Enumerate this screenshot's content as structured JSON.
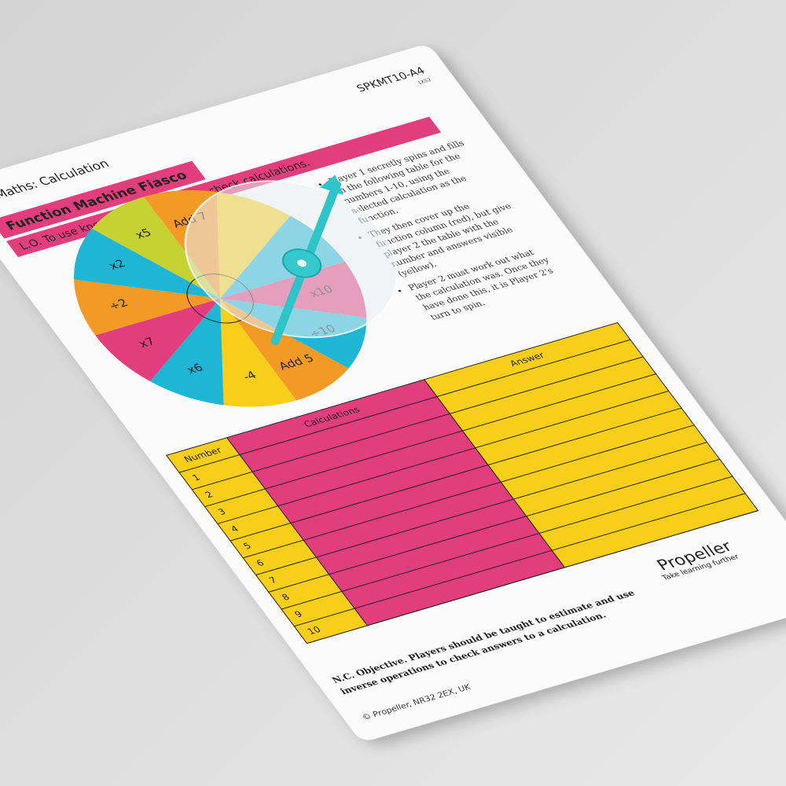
{
  "code": "SPKMT10-A4",
  "stage": "LKS2",
  "subject": "Maths: Calculation",
  "title": "Function Machine Fiasco",
  "objective": "L.O. To use knowledge of inverse to check calculations.",
  "wheel": {
    "labels": [
      "x5",
      "Add 7",
      "x10",
      "÷10",
      "Add 5",
      "-4",
      "x6",
      "x7",
      "÷2",
      "x2"
    ]
  },
  "instructions": [
    "Player 1 secretly spins and fills in the following table for the numbers 1-10, using the selected calculation as the function.",
    "They then cover up the function column (red), but give player 2 the table with the number and answers visible (yellow).",
    "Player 2 must work out what the calculation was. Once they have done this, it is Player 2's turn to spin."
  ],
  "table": {
    "headers": [
      "Number",
      "Calculations",
      "Answer"
    ],
    "rows": [
      "1",
      "2",
      "3",
      "4",
      "5",
      "6",
      "7",
      "8",
      "9",
      "10"
    ]
  },
  "nc_objective": "N.C. Objective. Players should be taught to estimate and use inverse operations to check answers to a calculation.",
  "footer": "© Propeller, NR32 2EX, UK",
  "logo": {
    "name": "Propeller",
    "tagline": "Take learning further"
  }
}
